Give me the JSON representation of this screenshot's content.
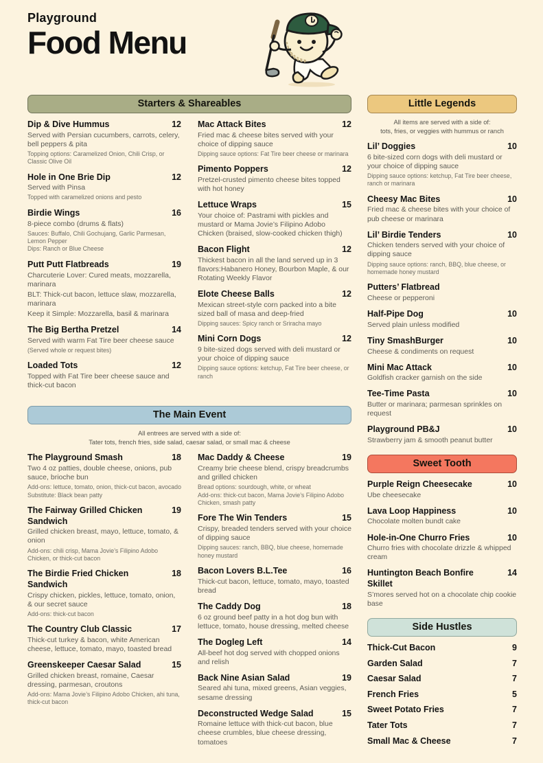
{
  "colors": {
    "background": "#fcf3df",
    "starters_header": "#a9ad86",
    "little_legends_header": "#ecc87f",
    "main_event_header": "#accad7",
    "sweet_tooth_header": "#f4775f",
    "side_hustles_header": "#cfe2d9",
    "cap_green": "#2d5b3f",
    "text_dark": "#141414"
  },
  "header": {
    "brand": "Playground",
    "title": "Food Menu",
    "mascot_icon": "golf-ball-character-with-green-cap-and-golf-club"
  },
  "sections": {
    "starters": {
      "title": "Starters & Shareables",
      "col1": [
        {
          "name": "Dip & Dive Hummus",
          "price": "12",
          "desc": [
            "Served with Persian cucumbers, carrots, celery, bell peppers & pita"
          ],
          "notes": [
            "Topping options: Caramelized Onion, Chili Crisp, or Classic Olive Oil"
          ]
        },
        {
          "name": "Hole in One Brie Dip",
          "price": "12",
          "desc": [
            "Served with Pinsa"
          ],
          "notes": [
            "Topped with caramelized onions and pesto"
          ]
        },
        {
          "name": "Birdie Wings",
          "price": "16",
          "desc": [
            "8-piece combo (drums & flats)"
          ],
          "notes": [
            "Sauces: Buffalo, Chili Gochujang, Garlic Parmesan, Lemon Pepper",
            "Dips: Ranch or Blue Cheese"
          ]
        },
        {
          "name": "Putt Putt Flatbreads",
          "price": "19",
          "desc": [
            "Charcuterie Lover: Cured meats, mozzarella, marinara",
            "BLT: Thick-cut bacon, lettuce slaw, mozzarella, marinara",
            "Keep it Simple: Mozzarella, basil & marinara"
          ]
        },
        {
          "name": "The Big Bertha Pretzel",
          "price": "14",
          "desc": [
            "Served with warm Fat Tire beer cheese sauce"
          ],
          "notes": [
            "(Served whole or request bites)"
          ]
        },
        {
          "name": "Loaded Tots",
          "price": "12",
          "desc": [
            "Topped with Fat Tire beer cheese sauce and thick-cut bacon"
          ]
        }
      ],
      "col2": [
        {
          "name": "Mac Attack Bites",
          "price": "12",
          "desc": [
            "Fried mac & cheese bites served with your choice of dipping sauce"
          ],
          "notes": [
            "Dipping sauce options: Fat Tire beer cheese or marinara"
          ]
        },
        {
          "name": "Pimento Poppers",
          "price": "12",
          "desc": [
            "Pretzel-crusted pimento cheese bites topped with hot honey"
          ]
        },
        {
          "name": "Lettuce Wraps",
          "price": "15",
          "desc": [
            "Your choice of: Pastrami with pickles and mustard or Mama Jovie’s Filipino Adobo Chicken (braised, slow-cooked chicken thigh)"
          ]
        },
        {
          "name": "Bacon Flight",
          "price": "12",
          "desc": [
            "Thickest bacon in all the land served up in 3 flavors:Habanero Honey, Bourbon Maple, & our Rotating Weekly Flavor"
          ]
        },
        {
          "name": "Elote Cheese Balls",
          "price": "12",
          "desc": [
            "Mexican street-style corn packed into a bite sized ball of masa and deep-fried"
          ],
          "notes": [
            "Dipping sauces: Spicy ranch or Sriracha mayo"
          ]
        },
        {
          "name": "Mini Corn Dogs",
          "price": "12",
          "desc": [
            "9 bite-sized dogs served with deli mustard or your choice of dipping sauce"
          ],
          "notes": [
            "Dipping sauce options: ketchup, Fat Tire beer cheese, or ranch"
          ]
        }
      ]
    },
    "little_legends": {
      "title": "Little Legends",
      "intro_line1": "All items are served with a side of:",
      "intro_line2": "tots, fries, or veggies with hummus or ranch",
      "items": [
        {
          "name": "Lil’ Doggies",
          "price": "10",
          "desc": [
            "6 bite-sized corn dogs with deli mustard or your choice of dipping sauce"
          ],
          "notes": [
            "Dipping sauce options: ketchup, Fat Tire beer cheese, ranch or marinara"
          ]
        },
        {
          "name": "Cheesy Mac Bites",
          "price": "10",
          "desc": [
            "Fried mac & cheese bites with your choice of pub cheese or marinara"
          ]
        },
        {
          "name": "Lil’ Birdie Tenders",
          "price": "10",
          "desc": [
            "Chicken tenders served with your choice of dipping sauce"
          ],
          "notes": [
            "Dipping sauce options: ranch, BBQ, blue cheese, or homemade honey mustard"
          ]
        },
        {
          "name": "Putters’ Flatbread",
          "price": "",
          "desc": [
            "Cheese or pepperoni"
          ]
        },
        {
          "name": "Half-Pipe Dog",
          "price": "10",
          "desc": [
            "Served plain unless modified"
          ]
        },
        {
          "name": "Tiny SmashBurger",
          "price": "10",
          "desc": [
            "Cheese & condiments on request"
          ]
        },
        {
          "name": "Mini Mac Attack",
          "price": "10",
          "desc": [
            "Goldfish cracker garnish on the side"
          ]
        },
        {
          "name": "Tee-Time Pasta",
          "price": "10",
          "desc": [
            "Butter or marinara; parmesan sprinkles on request"
          ]
        },
        {
          "name": "Playground PB&J",
          "price": "10",
          "desc": [
            "Strawberry jam & smooth peanut butter"
          ]
        }
      ]
    },
    "main_event": {
      "title": "The Main Event",
      "intro_line1": "All entrees are served with a side of:",
      "intro_line2": "Tater tots, french fries, side salad, caesar salad, or small mac & cheese",
      "col1": [
        {
          "name": "The Playground Smash",
          "price": "18",
          "desc": [
            "Two 4 oz patties, double cheese, onions, pub sauce, brioche bun"
          ],
          "notes": [
            "Add-ons: lettuce, tomato, onion, thick-cut bacon, avocado",
            "Substitute: Black bean patty"
          ]
        },
        {
          "name": "The Fairway Grilled Chicken Sandwich",
          "price": "19",
          "desc": [
            "Grilled chicken breast, mayo, lettuce, tomato, & onion"
          ],
          "notes": [
            "Add-ons: chili crisp, Mama Jovie’s Filipino Adobo Chicken, or thick-cut bacon"
          ]
        },
        {
          "name": "The Birdie Fried Chicken Sandwich",
          "price": "18",
          "desc": [
            "Crispy chicken, pickles, lettuce, tomato, onion, & our secret sauce"
          ],
          "notes": [
            "Add-ons: thick-cut bacon"
          ]
        },
        {
          "name": "The Country Club Classic",
          "price": "17",
          "desc": [
            "Thick-cut turkey & bacon, white American cheese, lettuce, tomato, mayo, toasted bread"
          ]
        },
        {
          "name": "Greenskeeper Caesar Salad",
          "price": "15",
          "desc": [
            "Grilled chicken breast, romaine, Caesar dressing, parmesan, croutons"
          ],
          "notes": [
            "Add-ons: Mama Jovie’s Filipino Adobo Chicken, ahi tuna, thick-cut bacon"
          ]
        }
      ],
      "col2": [
        {
          "name": "Mac Daddy & Cheese",
          "price": "19",
          "desc": [
            "Creamy brie cheese blend, crispy breadcrumbs and grilled chicken"
          ],
          "notes": [
            "Bread options: sourdough, white, or wheat",
            "Add-ons: thick-cut bacon, Mama Jovie’s Filipino Adobo Chicken, smash patty"
          ]
        },
        {
          "name": "Fore The Win Tenders",
          "price": "15",
          "desc": [
            "Crispy, breaded tenders served with your choice of dipping sauce"
          ],
          "notes": [
            "Dipping sauces: ranch, BBQ, blue cheese, homemade honey mustard"
          ]
        },
        {
          "name": "Bacon Lovers B.L.Tee",
          "price": "16",
          "desc": [
            "Thick-cut bacon, lettuce, tomato, mayo, toasted bread"
          ]
        },
        {
          "name": "The Caddy Dog",
          "price": "18",
          "desc": [
            "6 oz ground beef patty in a hot dog bun with lettuce, tomato, house dressing, melted cheese"
          ]
        },
        {
          "name": "The Dogleg Left",
          "price": "14",
          "desc": [
            "All-beef hot dog served with chopped onions and relish"
          ]
        },
        {
          "name": "Back Nine Asian Salad",
          "price": "19",
          "desc": [
            "Seared ahi tuna, mixed greens, Asian veggies, sesame dressing"
          ]
        },
        {
          "name": "Deconstructed Wedge Salad",
          "price": "15",
          "desc": [
            "Romaine lettuce with thick-cut bacon, blue cheese crumbles, blue cheese dressing, tomatoes"
          ]
        }
      ]
    },
    "sweet_tooth": {
      "title": "Sweet Tooth",
      "items": [
        {
          "name": "Purple Reign Cheesecake",
          "price": "10",
          "desc": [
            "Ube cheesecake"
          ]
        },
        {
          "name": "Lava Loop Happiness",
          "price": "10",
          "desc": [
            "Chocolate molten bundt cake"
          ]
        },
        {
          "name": "Hole-in-One Churro Fries",
          "price": "10",
          "desc": [
            "Churro fries with chocolate drizzle & whipped cream"
          ]
        },
        {
          "name": "Huntington Beach Bonfire Skillet",
          "price": "14",
          "desc": [
            "S’mores served hot on a chocolate chip cookie base"
          ]
        }
      ]
    },
    "side_hustles": {
      "title": "Side Hustles",
      "items": [
        {
          "name": "Thick-Cut Bacon",
          "price": "9"
        },
        {
          "name": "Garden Salad",
          "price": "7"
        },
        {
          "name": "Caesar Salad",
          "price": "7"
        },
        {
          "name": "French Fries",
          "price": "5"
        },
        {
          "name": "Sweet Potato Fries",
          "price": "7"
        },
        {
          "name": "Tater Tots",
          "price": "7"
        },
        {
          "name": "Small Mac & Cheese",
          "price": "7"
        }
      ]
    }
  }
}
